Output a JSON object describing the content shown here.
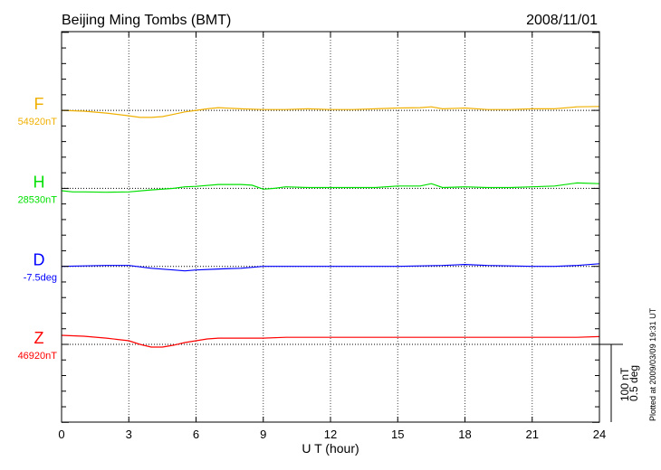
{
  "chart_data": {
    "type": "line",
    "title": "Beijing Ming Tombs (BMT)",
    "date": "2008/11/01",
    "xlabel": "U T (hour)",
    "xlim": [
      0,
      24
    ],
    "xticks": [
      "0",
      "3",
      "6",
      "9",
      "12",
      "15",
      "18",
      "21",
      "24"
    ],
    "grid": true,
    "scale_bar": {
      "label_nt": "100 nT",
      "label_deg": "0.5 deg",
      "nt": 100,
      "deg": 0.5
    },
    "footer": "Plotted at 2009/03/09 19:31 UT",
    "series": [
      {
        "name": "F",
        "baseline_label": "54920nT",
        "unit": "nT",
        "color": "#f0b000",
        "offset": 300,
        "x": [
          0,
          1,
          2,
          3,
          3.5,
          4,
          4.5,
          5,
          5.5,
          6,
          6.5,
          7,
          8,
          9,
          10,
          11,
          12,
          13,
          14,
          15,
          16,
          16.5,
          17,
          18,
          19,
          20,
          21,
          22,
          23,
          24
        ],
        "y": [
          0,
          -1,
          -3.5,
          -7,
          -9,
          -9,
          -8,
          -5,
          -2,
          0,
          2,
          3.5,
          2,
          1,
          1,
          2,
          1,
          1,
          2,
          3,
          3.5,
          4.5,
          2,
          3,
          1,
          1,
          2,
          2,
          4.5,
          5
        ]
      },
      {
        "name": "H",
        "baseline_label": "28530nT",
        "unit": "nT",
        "color": "#00e000",
        "offset": 200,
        "x": [
          0,
          0.5,
          1,
          2,
          3,
          4,
          5,
          5.5,
          6,
          7,
          8,
          8.5,
          9,
          9.5,
          10,
          11,
          12,
          13,
          14,
          15,
          16,
          16.5,
          17,
          18,
          19,
          20,
          21,
          22,
          23,
          24
        ],
        "y": [
          -3,
          -4.5,
          -4.5,
          -5,
          -4.5,
          -2,
          0,
          2,
          2.5,
          5,
          5,
          4,
          -1,
          0,
          2,
          1,
          1,
          1,
          1,
          3,
          3,
          6,
          1,
          2,
          1,
          1,
          2,
          3,
          7,
          6
        ]
      },
      {
        "name": "D",
        "baseline_label": "-7.5deg",
        "unit": "deg",
        "color": "#0000ff",
        "offset": 100,
        "x": [
          0,
          2,
          3,
          4,
          5,
          5.5,
          6,
          7,
          8,
          9,
          12,
          15,
          17,
          18,
          19,
          21,
          22,
          23,
          24
        ],
        "y": [
          0,
          0.006,
          0.006,
          -0.012,
          -0.023,
          -0.029,
          -0.023,
          -0.017,
          -0.012,
          0,
          0,
          0,
          0.006,
          0.012,
          0.006,
          0,
          0,
          0.006,
          0.017
        ]
      },
      {
        "name": "Z",
        "baseline_label": "46920nT",
        "unit": "nT",
        "color": "#ff0000",
        "offset": 0,
        "x": [
          0,
          1,
          2,
          3,
          3.5,
          4,
          4.5,
          5,
          5.5,
          6,
          6.5,
          7,
          8,
          9,
          10,
          12,
          15,
          18,
          21,
          23,
          24
        ],
        "y": [
          11.6,
          10.4,
          8,
          4.6,
          0,
          -3.5,
          -3.5,
          -1,
          2.3,
          4.6,
          7,
          8,
          8,
          8,
          9,
          9,
          9,
          9,
          9,
          9,
          10
        ]
      }
    ]
  }
}
